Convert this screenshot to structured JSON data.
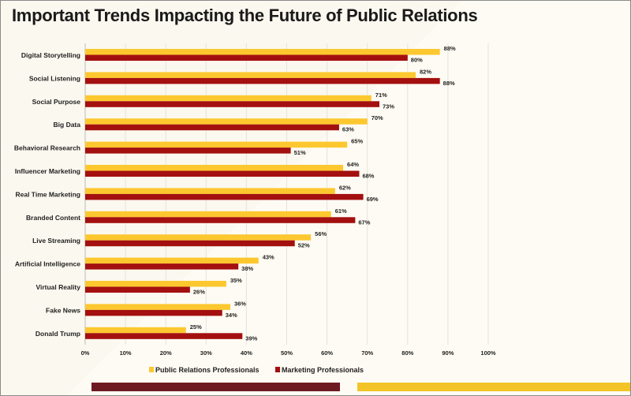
{
  "title": "Important Trends Impacting the Future of Public Relations",
  "chart_data": {
    "type": "bar",
    "orientation": "horizontal",
    "title": "Important Trends Impacting the Future of Public Relations",
    "categories": [
      "Digital Storytelling",
      "Social Listening",
      "Social Purpose",
      "Big Data",
      "Behavioral Research",
      "Influencer Marketing",
      "Real Time Marketing",
      "Branded Content",
      "Live Streaming",
      "Artificial Intelligence",
      "Virtual Reality",
      "Fake News",
      "Donald Trump"
    ],
    "series": [
      {
        "name": "Public Relations Professionals",
        "color": "#fdc82f",
        "values": [
          88,
          82,
          71,
          70,
          65,
          64,
          62,
          61,
          56,
          43,
          35,
          36,
          25
        ]
      },
      {
        "name": "Marketing Professionals",
        "color": "#a3100f",
        "values": [
          80,
          88,
          73,
          63,
          51,
          68,
          69,
          67,
          52,
          38,
          26,
          34,
          39
        ]
      }
    ],
    "xlim": [
      0,
      100
    ],
    "xticks": [
      "0%",
      "10%",
      "20%",
      "30%",
      "40%",
      "50%",
      "60%",
      "70%",
      "80%",
      "90%",
      "100%"
    ],
    "grid": true,
    "legend": "bottom"
  }
}
